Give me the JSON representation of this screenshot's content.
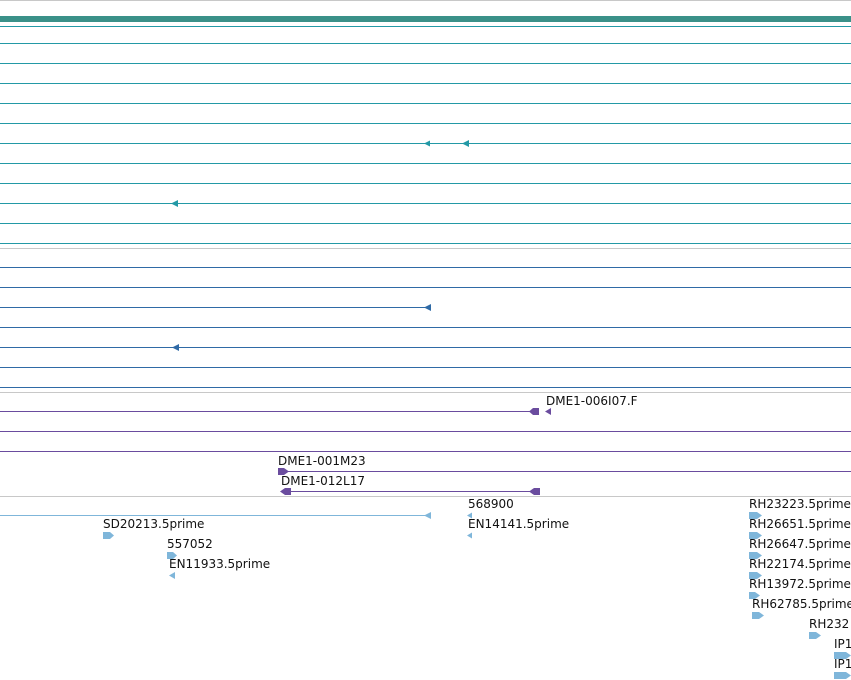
{
  "colors": {
    "separator": "#c8c8c8",
    "header_bar": "#3a9189",
    "track_a": "#2399a6",
    "track_b": "#2f6aa6",
    "track_c": "#6a4c9e",
    "track_d": "#7fb6da"
  },
  "tracks": {
    "track_a": {
      "name": "teal-gene-track"
    },
    "track_b": {
      "name": "blue-gene-track"
    },
    "track_c": {
      "name": "bac-clone-track"
    },
    "track_d": {
      "name": "est-alignment-track"
    }
  },
  "labels": {
    "dme1_006i07": "DME1-006I07.F",
    "dme1_001m23": "DME1-001M23",
    "dme1_012l17": "DME1-012L17",
    "sd20213": "SD20213.5prime",
    "n557052": "557052",
    "en11933": "EN11933.5prime",
    "n568900": "568900",
    "en14141": "EN14141.5prime",
    "rh23223": "RH23223.5prime",
    "rh26651": "RH26651.5prime",
    "rh26647": "RH26647.5prime",
    "rh22174": "RH22174.5prime",
    "rh13972": "RH13972.5prime",
    "rh62785": "RH62785.5prime",
    "rh232": "RH232",
    "ip1_a": "IP1",
    "ip1_b": "IP1"
  }
}
